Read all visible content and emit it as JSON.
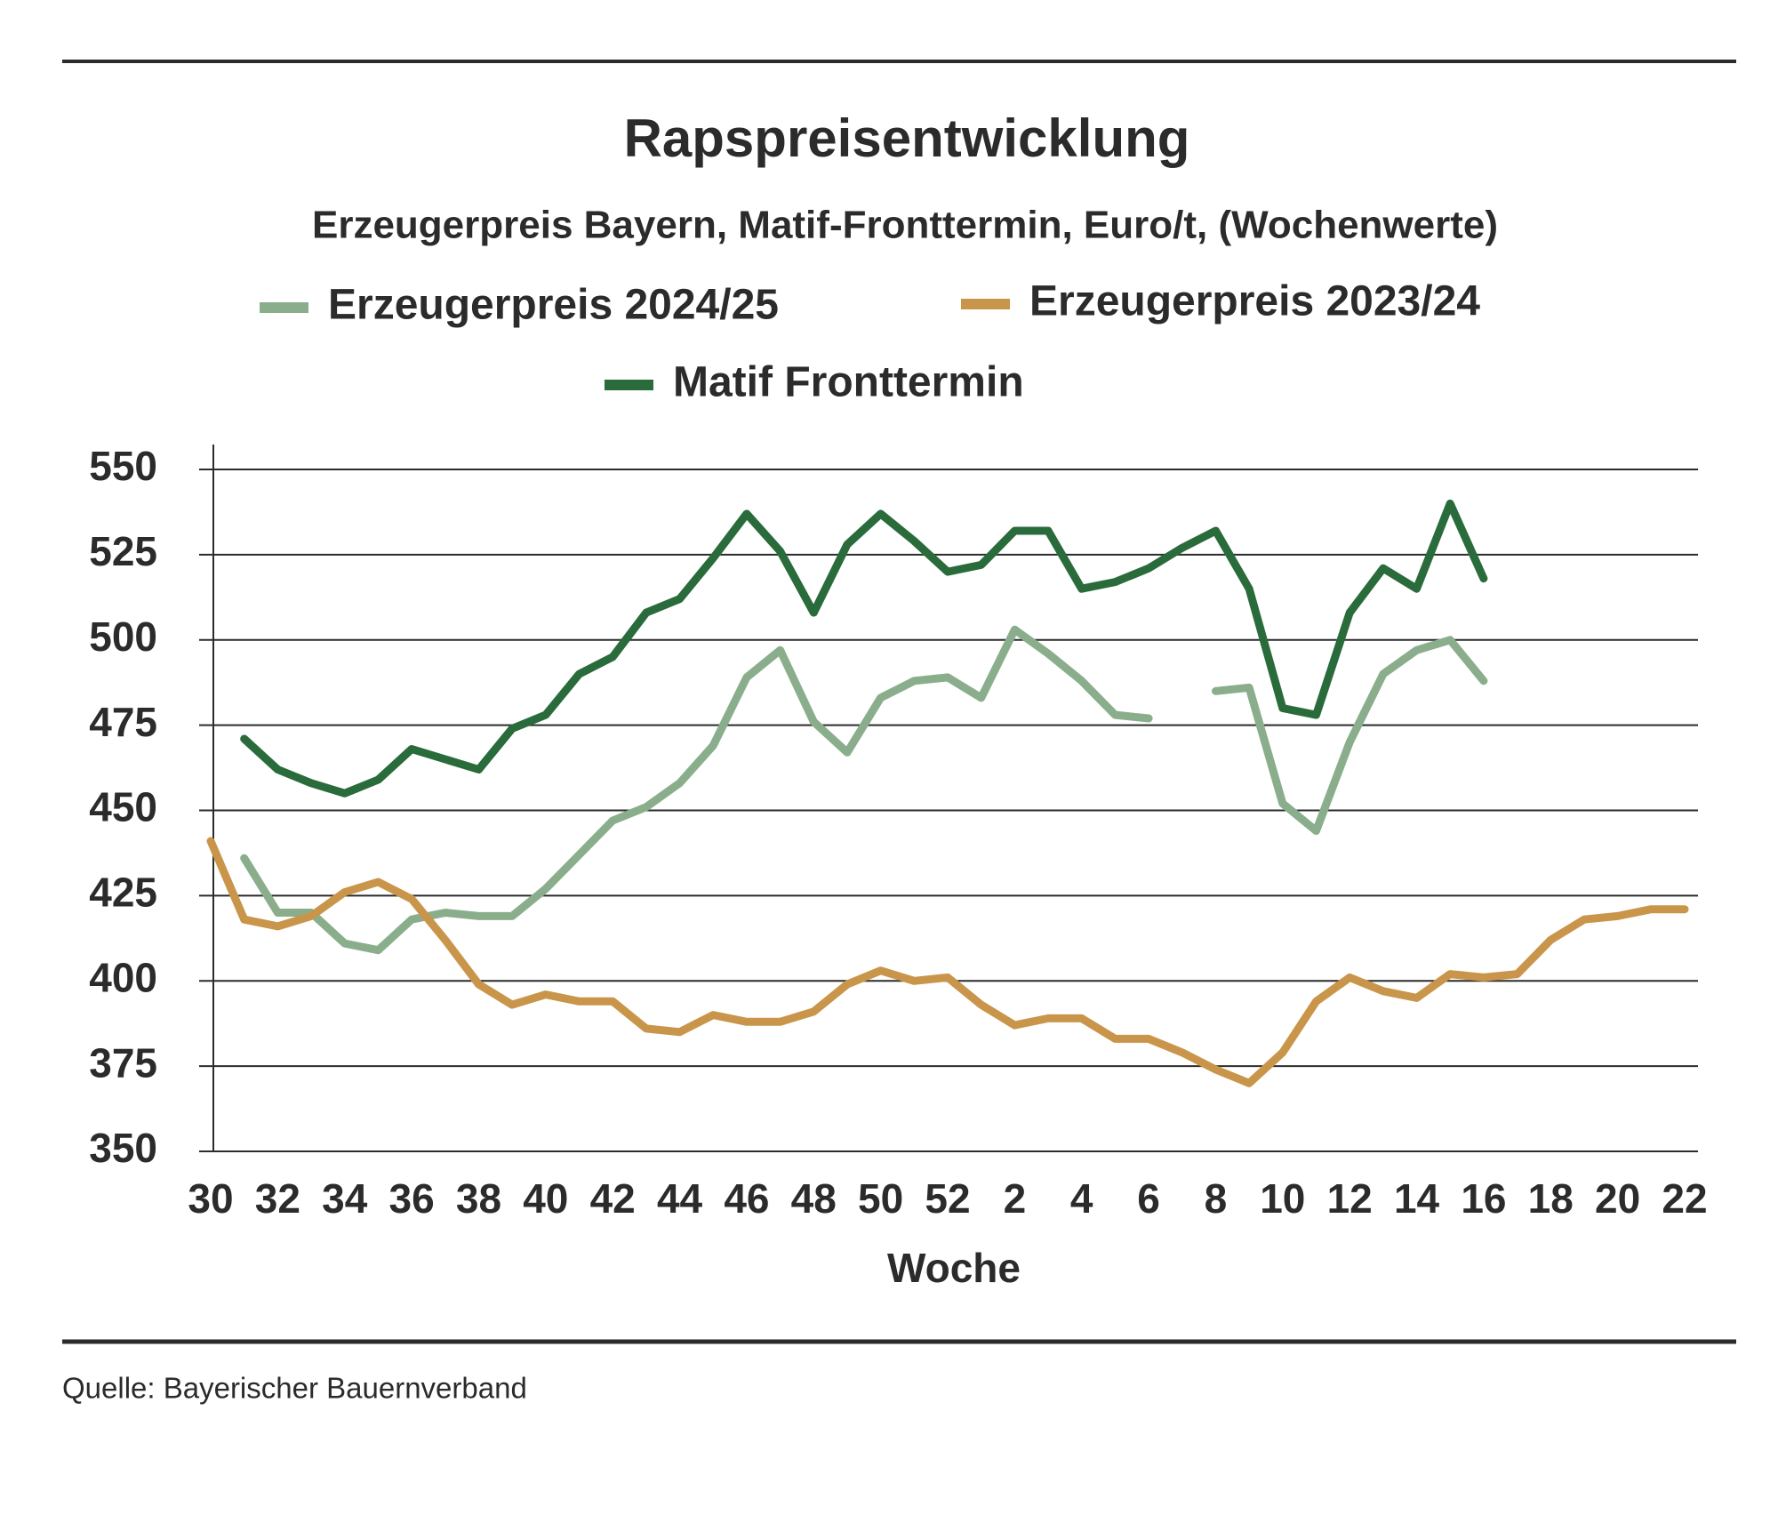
{
  "chart_data": {
    "type": "line",
    "title": "Rapspreisentwicklung",
    "subtitle": "Erzeugerpreis Bayern, Matif-Fronttermin, Euro/t, (Wochenwerte)",
    "xlabel": "Woche",
    "source": "Quelle: Bayerischer Bauernverband",
    "categories": [
      "30",
      null,
      "32",
      null,
      "34",
      null,
      "36",
      null,
      "38",
      null,
      "40",
      null,
      "42",
      null,
      "44",
      null,
      "46",
      null,
      "48",
      null,
      "50",
      null,
      "52",
      null,
      "2",
      null,
      "4",
      null,
      "6",
      null,
      "8",
      null,
      "10",
      null,
      "12",
      null,
      "14",
      null,
      "16",
      null,
      "18",
      null,
      "20",
      null,
      "22"
    ],
    "series": [
      {
        "name": "Erzeugerpreis 2024/25",
        "color": "#8aae8c",
        "values": [
          null,
          436,
          420,
          420,
          411,
          409,
          418,
          420,
          419,
          419,
          427,
          437,
          447,
          451,
          458,
          469,
          489,
          497,
          476,
          467,
          483,
          488,
          489,
          483,
          503,
          496,
          488,
          478,
          477,
          null,
          485,
          486,
          452,
          444,
          470,
          490,
          497,
          500,
          488,
          null,
          null,
          null,
          null,
          null,
          null
        ]
      },
      {
        "name": "Erzeugerpreis 2023/24",
        "color": "#c9954a",
        "values": [
          441,
          418,
          416,
          419,
          426,
          429,
          424,
          412,
          399,
          393,
          396,
          394,
          394,
          386,
          385,
          390,
          388,
          388,
          391,
          399,
          403,
          400,
          401,
          393,
          387,
          389,
          389,
          383,
          383,
          379,
          374,
          370,
          379,
          394,
          401,
          397,
          395,
          402,
          401,
          402,
          412,
          418,
          419,
          421,
          421
        ]
      },
      {
        "name": "Matif Fronttermin",
        "color": "#2a6b3c",
        "values": [
          null,
          471,
          462,
          458,
          455,
          459,
          468,
          465,
          462,
          474,
          478,
          490,
          495,
          508,
          512,
          524,
          537,
          526,
          508,
          528,
          537,
          529,
          520,
          522,
          532,
          532,
          515,
          517,
          521,
          527,
          532,
          515,
          480,
          478,
          508,
          521,
          515,
          540,
          518,
          null,
          null,
          null,
          null,
          null,
          null
        ]
      }
    ],
    "ylim": [
      350,
      550
    ],
    "yticks": [
      350,
      375,
      400,
      425,
      450,
      475,
      500,
      525,
      550
    ],
    "grid": true
  }
}
